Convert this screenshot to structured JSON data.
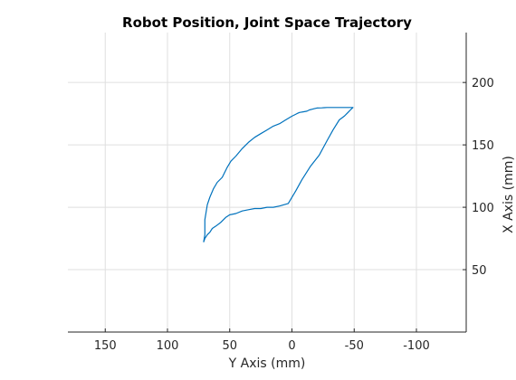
{
  "chart_data": {
    "type": "line",
    "title": "Robot Position, Joint Space Trajectory",
    "xlabel": "Y Axis (mm)",
    "ylabel": "X Axis (mm)",
    "x_reversed": true,
    "xlim": [
      -140,
      180
    ],
    "ylim": [
      0,
      240
    ],
    "grid": true,
    "xticks": [
      150,
      100,
      50,
      0,
      -50,
      -100
    ],
    "xtick_labels": [
      "150",
      "100",
      "50",
      "0",
      "-50",
      "-100"
    ],
    "yticks": [
      50,
      100,
      150,
      200
    ],
    "ytick_labels": [
      "50",
      "100",
      "150",
      "200"
    ],
    "y_axis_location": "right",
    "series": [
      {
        "color": "#0072BD",
        "x": [
          71,
          70,
          70,
          68,
          66,
          63,
          60,
          56,
          52,
          49,
          45,
          40,
          35,
          30,
          25,
          20,
          15,
          10,
          5,
          0,
          -2,
          -4,
          -6,
          -9,
          -12,
          -14,
          -16,
          -18,
          -20,
          -22,
          -24,
          -26,
          -28,
          -30,
          -33,
          -35,
          -37,
          -39,
          -41,
          -42,
          -44,
          -46,
          -49,
          -47,
          -45,
          -42,
          -38,
          -33,
          -28,
          -22,
          -15,
          -8,
          -3,
          3,
          10,
          15,
          20,
          25,
          30,
          35,
          40,
          45,
          50,
          53,
          57,
          61,
          64,
          66,
          68,
          70,
          71
        ],
        "y": [
          72,
          78,
          90,
          102,
          108,
          115,
          120,
          124,
          132,
          137,
          141,
          147,
          152,
          156,
          159,
          162,
          165,
          167,
          170,
          173,
          174,
          175,
          176,
          176.5,
          177,
          178,
          178.5,
          179,
          179.5,
          179.6,
          179.7,
          179.8,
          180,
          180,
          180,
          180,
          180,
          180,
          180,
          180,
          180,
          180,
          180,
          178,
          176,
          173,
          170,
          162,
          153,
          142,
          133,
          122,
          113,
          103,
          101,
          100,
          100,
          99,
          99,
          98,
          97,
          95,
          94,
          92,
          88,
          85,
          83,
          80,
          78,
          75,
          72
        ]
      }
    ]
  }
}
